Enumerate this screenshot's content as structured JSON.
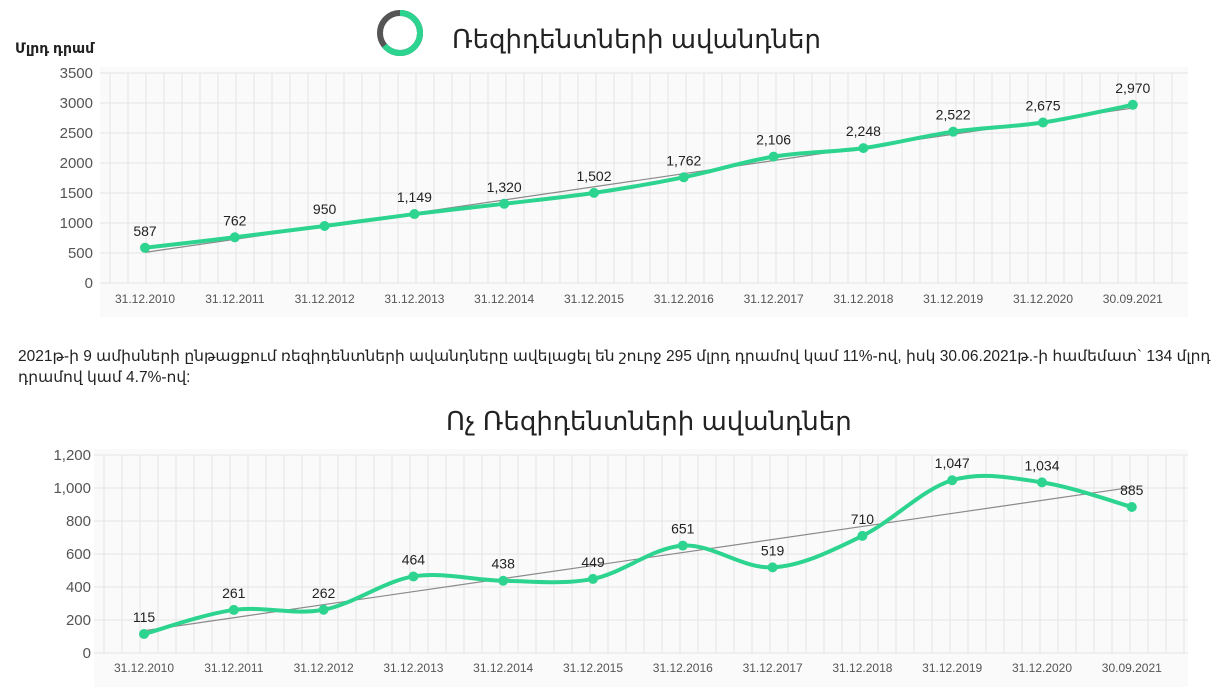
{
  "colors": {
    "series": "#2dd48f",
    "trend": "#8a8a8a",
    "grid": "#e4e4e4",
    "axis_text": "#555555"
  },
  "chart_data": [
    {
      "type": "line",
      "title": "Ռեզիդենտների ավանդներ",
      "ylabel": "Մլրդ դրամ",
      "xlabel": "",
      "categories": [
        "31.12.2010",
        "31.12.2011",
        "31.12.2012",
        "31.12.2013",
        "31.12.2014",
        "31.12.2015",
        "31.12.2016",
        "31.12.2017",
        "31.12.2018",
        "31.12.2019",
        "31.12.2020",
        "30.09.2021"
      ],
      "values": [
        587,
        762,
        950,
        1149,
        1320,
        1502,
        1762,
        2106,
        2248,
        2522,
        2675,
        2970
      ],
      "data_labels": [
        "587",
        "762",
        "950",
        "1,149",
        "1,320",
        "1,502",
        "1,762",
        "2,106",
        "2,248",
        "2,522",
        "2,675",
        "2,970"
      ],
      "ylim": [
        0,
        3500
      ],
      "yticks": [
        "0",
        "500",
        "1000",
        "1500",
        "2000",
        "2500",
        "3000",
        "3500"
      ],
      "trendline": true,
      "grid": true
    },
    {
      "type": "line",
      "title": "Ոչ Ռեզիդենտների ավանդներ",
      "xlabel": "",
      "ylabel": "",
      "categories": [
        "31.12.2010",
        "31.12.2011",
        "31.12.2012",
        "31.12.2013",
        "31.12.2014",
        "31.12.2015",
        "31.12.2016",
        "31.12.2017",
        "31.12.2018",
        "31.12.2019",
        "31.12.2020",
        "30.09.2021"
      ],
      "values": [
        115,
        261,
        262,
        464,
        438,
        449,
        651,
        519,
        710,
        1047,
        1034,
        885
      ],
      "data_labels": [
        "115",
        "261",
        "262",
        "464",
        "438",
        "449",
        "651",
        "519",
        "710",
        "1,047",
        "1,034",
        "885"
      ],
      "ylim": [
        0,
        1200
      ],
      "yticks": [
        "0",
        "200",
        "400",
        "600",
        "800",
        "1,000",
        "1,200"
      ],
      "trendline": true,
      "grid": true
    }
  ],
  "paragraph": "2021թ-ի 9 ամիսների ընթացքում ռեզիդենտների ավանդները ավելացել են շուրջ 295 մլրդ դրամով կամ 11%-ով, իսկ 30.06.2021թ.-ի համեմատ` 134 մլրդ դրամով կամ 4.7%-ով:"
}
